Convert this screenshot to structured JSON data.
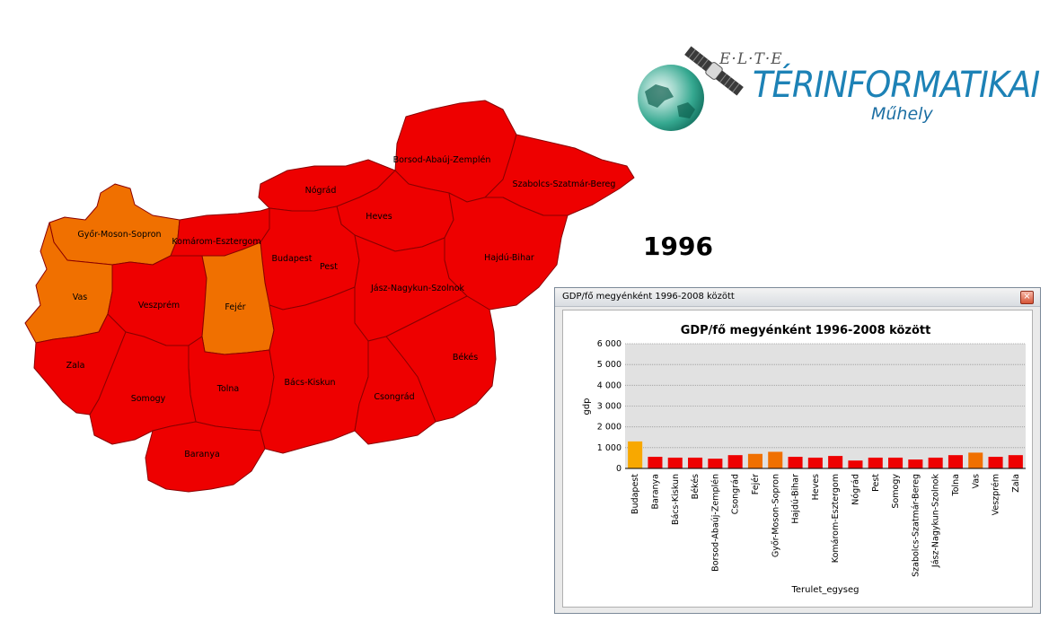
{
  "year": "1996",
  "logo": {
    "elte": "E·L·T·E",
    "brand": "TÉRINFORMATIKAI",
    "subtitle": "Műhely"
  },
  "colors": {
    "low": "#ee0000",
    "mid": "#f07000",
    "high": "#f8a800",
    "plot_bg": "#e1e1e1",
    "grid": "#9a9a9a"
  },
  "map": {
    "counties": [
      {
        "name": "Borsod-Abaúj-Zemplén",
        "level": "low"
      },
      {
        "name": "Szabolcs-Szatmár-Bereg",
        "level": "low"
      },
      {
        "name": "Nógrád",
        "level": "low"
      },
      {
        "name": "Heves",
        "level": "low"
      },
      {
        "name": "Győr-Moson-Sopron",
        "level": "mid"
      },
      {
        "name": "Komárom-Esztergom",
        "level": "low"
      },
      {
        "name": "Budapest",
        "level": "high"
      },
      {
        "name": "Pest",
        "level": "low"
      },
      {
        "name": "Hajdú-Bihar",
        "level": "low"
      },
      {
        "name": "Vas",
        "level": "mid"
      },
      {
        "name": "Veszprém",
        "level": "low"
      },
      {
        "name": "Fejér",
        "level": "mid"
      },
      {
        "name": "Jász-Nagykun-Szolnok",
        "level": "low"
      },
      {
        "name": "Békés",
        "level": "low"
      },
      {
        "name": "Zala",
        "level": "low"
      },
      {
        "name": "Tolna",
        "level": "low"
      },
      {
        "name": "Bács-Kiskun",
        "level": "low"
      },
      {
        "name": "Somogy",
        "level": "low"
      },
      {
        "name": "Csongrád",
        "level": "low"
      },
      {
        "name": "Baranya",
        "level": "low"
      }
    ]
  },
  "window": {
    "title": "GDP/fő megyénként 1996-2008 között",
    "close_label": "×"
  },
  "chart_data": {
    "type": "bar",
    "title": "GDP/fő megyénként 1996-2008 között",
    "xlabel": "Terulet_egyseg",
    "ylabel": "gdp",
    "ylim": [
      0,
      6000
    ],
    "yticks": [
      "0",
      "1 000",
      "2 000",
      "3 000",
      "4 000",
      "5 000",
      "6 000"
    ],
    "grid": true,
    "categories": [
      "Budapest",
      "Baranya",
      "Bács-Kiskun",
      "Békés",
      "Borsod-Abaúj-Zemplén",
      "Csongrád",
      "Fejér",
      "Győr-Moson-Sopron",
      "Hajdú-Bihar",
      "Heves",
      "Komárom-Esztergom",
      "Nógrád",
      "Pest",
      "Somogy",
      "Szabolcs-Szatmár-Bereg",
      "Jász-Nagykun-Szolnok",
      "Tolna",
      "Vas",
      "Veszprém",
      "Zala"
    ],
    "values": [
      1300,
      560,
      520,
      520,
      470,
      640,
      700,
      800,
      560,
      520,
      600,
      380,
      520,
      520,
      430,
      520,
      640,
      760,
      560,
      640
    ],
    "levels": [
      "high",
      "low",
      "low",
      "low",
      "low",
      "low",
      "mid",
      "mid",
      "low",
      "low",
      "low",
      "low",
      "low",
      "low",
      "low",
      "low",
      "low",
      "mid",
      "low",
      "low"
    ]
  }
}
